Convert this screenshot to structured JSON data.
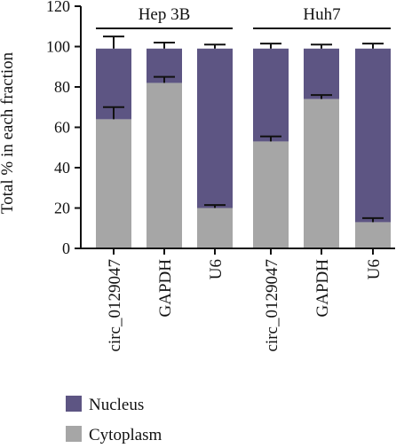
{
  "chart_data": {
    "type": "bar",
    "stacked": true,
    "ylabel": "Total % in each fraction",
    "ylim": [
      0,
      120
    ],
    "yticks": [
      0,
      20,
      40,
      60,
      80,
      100,
      120
    ],
    "categories": [
      "circ_0129047",
      "GAPDH",
      "U6",
      "circ_0129047",
      "GAPDH",
      "U6"
    ],
    "groups": [
      {
        "label": "Hep 3B",
        "members": [
          0,
          1,
          2
        ]
      },
      {
        "label": "Huh7",
        "members": [
          3,
          4,
          5
        ]
      }
    ],
    "series": [
      {
        "name": "Cytoplasm",
        "color": "#a6a6a6",
        "values": [
          64,
          82,
          20,
          53,
          74,
          13
        ],
        "errors": [
          6,
          3,
          1.5,
          2.5,
          2,
          2
        ]
      },
      {
        "name": "Nucleus",
        "color": "#5d5583",
        "values": [
          35,
          17,
          79,
          46,
          25,
          86
        ],
        "errors": [
          6,
          3,
          2,
          2.5,
          2,
          2.5
        ]
      }
    ],
    "legend_position": "bottom-left",
    "grid": false
  }
}
